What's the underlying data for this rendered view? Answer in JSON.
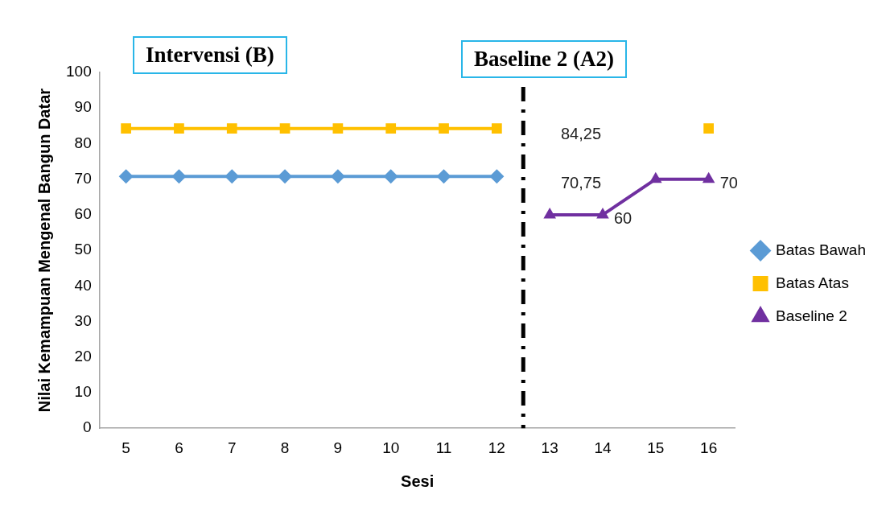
{
  "chart_data": {
    "type": "line",
    "xlabel": "Sesi",
    "ylabel": "Nilai Kemampuan Mengenal Bangun Datar",
    "x": [
      5,
      6,
      7,
      8,
      9,
      10,
      11,
      12,
      13,
      14,
      15,
      16
    ],
    "xlim": [
      4.5,
      16.5
    ],
    "xticks": [
      5,
      6,
      7,
      8,
      9,
      10,
      11,
      12,
      13,
      14,
      15,
      16
    ],
    "ylim": [
      0,
      100
    ],
    "yticks": [
      0,
      10,
      20,
      30,
      40,
      50,
      60,
      70,
      80,
      90,
      100
    ],
    "grid": false,
    "legend": "right",
    "line_style": "solid",
    "series": [
      {
        "name": "Batas Bawah",
        "color": "#5b9bd5",
        "marker": "diamond",
        "values": [
          70.75,
          70.75,
          70.75,
          70.75,
          70.75,
          70.75,
          70.75,
          70.75,
          null,
          null,
          null,
          null
        ]
      },
      {
        "name": "Batas Atas",
        "color": "#ffc000",
        "marker": "square",
        "values": [
          84.25,
          84.25,
          84.25,
          84.25,
          84.25,
          84.25,
          84.25,
          84.25,
          null,
          null,
          null,
          84.25
        ]
      },
      {
        "name": "Baseline 2",
        "color": "#7030a0",
        "marker": "triangle",
        "values": [
          null,
          null,
          null,
          null,
          null,
          null,
          null,
          null,
          60,
          60,
          70,
          70
        ]
      }
    ],
    "ref_lines": [
      {
        "axis": "x",
        "value": 12.5,
        "color": "#000000",
        "line_style": "dashed"
      }
    ],
    "annotations": [
      "Intervensi (B)",
      "Baseline 2 (A2)",
      "84,25",
      "70,75",
      {
        "text": "60",
        "x": 14,
        "y": 60
      },
      {
        "text": "70",
        "x": 16,
        "y": 70
      }
    ]
  }
}
